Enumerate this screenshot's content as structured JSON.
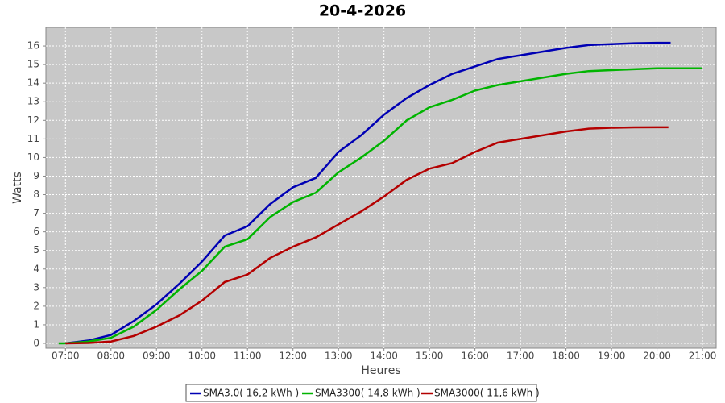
{
  "chart_data": {
    "type": "line",
    "title": "20-4-2026",
    "xlabel": "Heures",
    "ylabel": "Watts",
    "xlim": [
      6.57,
      21.3
    ],
    "ylim": [
      -0.26,
      17
    ],
    "xticks": [
      {
        "value": 7,
        "label": "07:00"
      },
      {
        "value": 8,
        "label": "08:00"
      },
      {
        "value": 9,
        "label": "09:00"
      },
      {
        "value": 10,
        "label": "10:00"
      },
      {
        "value": 11,
        "label": "11:00"
      },
      {
        "value": 12,
        "label": "12:00"
      },
      {
        "value": 13,
        "label": "13:00"
      },
      {
        "value": 14,
        "label": "14:00"
      },
      {
        "value": 15,
        "label": "15:00"
      },
      {
        "value": 16,
        "label": "16:00"
      },
      {
        "value": 17,
        "label": "17:00"
      },
      {
        "value": 18,
        "label": "18:00"
      },
      {
        "value": 19,
        "label": "19:00"
      },
      {
        "value": 20,
        "label": "20:00"
      },
      {
        "value": 21,
        "label": "21:00"
      }
    ],
    "yticks": [
      0,
      1,
      2,
      3,
      4,
      5,
      6,
      7,
      8,
      9,
      10,
      11,
      12,
      13,
      14,
      15,
      16
    ],
    "grid": true,
    "legend": "bottom",
    "series": [
      {
        "name": "SMA3.0( 16,2 kWh )",
        "color": "#0000b4",
        "x": [
          7,
          7.5,
          8,
          8.5,
          9,
          9.5,
          10,
          10.5,
          11,
          11.5,
          12,
          12.5,
          13,
          13.5,
          14,
          14.5,
          15,
          15.5,
          16,
          16.5,
          17,
          17.5,
          18,
          18.5,
          19,
          19.5,
          20,
          20.3
        ],
        "values": [
          0,
          0.15,
          0.45,
          1.2,
          2.1,
          3.2,
          4.4,
          5.8,
          6.3,
          7.5,
          8.4,
          8.9,
          10.3,
          11.2,
          12.3,
          13.2,
          13.9,
          14.5,
          14.9,
          15.3,
          15.5,
          15.7,
          15.9,
          16.05,
          16.1,
          16.15,
          16.17,
          16.17
        ]
      },
      {
        "name": "SMA3300( 14,8 kWh )",
        "color": "#00b400",
        "x": [
          6.85,
          7,
          7.5,
          8,
          8.5,
          9,
          9.5,
          10,
          10.5,
          11,
          11.5,
          12,
          12.5,
          13,
          13.5,
          14,
          14.5,
          15,
          15.5,
          16,
          16.5,
          17,
          17.5,
          18,
          18.5,
          19,
          19.5,
          20,
          21
        ],
        "values": [
          0,
          0,
          0.1,
          0.3,
          0.9,
          1.8,
          2.9,
          3.9,
          5.2,
          5.6,
          6.8,
          7.6,
          8.1,
          9.2,
          10.0,
          10.9,
          12.0,
          12.7,
          13.1,
          13.6,
          13.9,
          14.1,
          14.3,
          14.5,
          14.65,
          14.7,
          14.75,
          14.8,
          14.8
        ]
      },
      {
        "name": "SMA3000( 11,6 kWh )",
        "color": "#b40000",
        "x": [
          7,
          7.5,
          8,
          8.5,
          9,
          9.5,
          10,
          10.5,
          11,
          11.5,
          12,
          12.5,
          13,
          13.5,
          14,
          14.5,
          15,
          15.5,
          16,
          16.5,
          17,
          17.5,
          18,
          18.5,
          19,
          19.5,
          20,
          20.25
        ],
        "values": [
          0,
          0.02,
          0.1,
          0.4,
          0.9,
          1.5,
          2.3,
          3.3,
          3.7,
          4.6,
          5.2,
          5.7,
          6.4,
          7.1,
          7.9,
          8.8,
          9.4,
          9.7,
          10.3,
          10.8,
          11.0,
          11.2,
          11.4,
          11.55,
          11.6,
          11.62,
          11.63,
          11.63
        ]
      }
    ]
  }
}
